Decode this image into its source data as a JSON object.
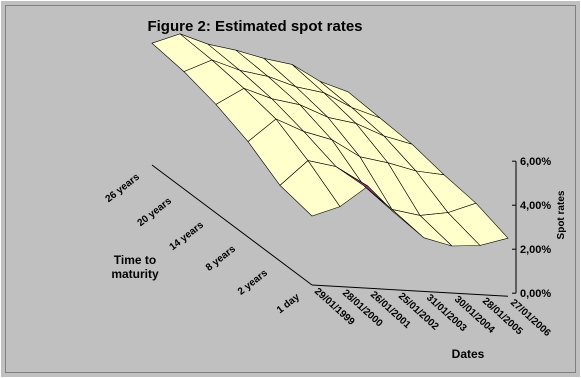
{
  "chart_data": {
    "type": "surface",
    "title": "Figure 2: Estimated spot rates",
    "x_title": "Dates",
    "y_title": "Time to maturity",
    "z_title": "Spot rates",
    "categories": [
      "29/01/1999",
      "28/01/2000",
      "26/01/2001",
      "25/01/2002",
      "31/01/2003",
      "30/01/2004",
      "28/01/2005",
      "27/01/2006"
    ],
    "series": [
      {
        "name": "1 day",
        "values": [
          3.0,
          3.5,
          4.5,
          3.3,
          2.3,
          2.0,
          2.1,
          2.5
        ]
      },
      {
        "name": "2 years",
        "values": [
          3.3,
          4.5,
          4.3,
          3.5,
          2.5,
          2.3,
          2.5,
          3.0
        ]
      },
      {
        "name": "8 years",
        "values": [
          4.2,
          5.3,
          4.8,
          4.5,
          3.8,
          3.6,
          3.3,
          3.2
        ]
      },
      {
        "name": "14 years",
        "values": [
          4.8,
          5.6,
          5.2,
          5.0,
          4.5,
          4.3,
          3.8,
          3.5
        ]
      },
      {
        "name": "20 years",
        "values": [
          5.2,
          5.8,
          5.4,
          5.2,
          4.8,
          4.6,
          4.0,
          3.6
        ]
      },
      {
        "name": "26 years",
        "values": [
          5.4,
          5.9,
          5.5,
          5.3,
          5.0,
          4.8,
          4.1,
          3.7
        ]
      }
    ],
    "zlim": [
      0,
      6
    ],
    "zticks": [
      {
        "value": 0,
        "label": "0,00%"
      },
      {
        "value": 2,
        "label": "2,00%"
      },
      {
        "value": 4,
        "label": "4,00%"
      },
      {
        "value": 6,
        "label": "6,00%"
      }
    ],
    "top_color": "#ffffcc",
    "bottom_color": "#993366"
  }
}
